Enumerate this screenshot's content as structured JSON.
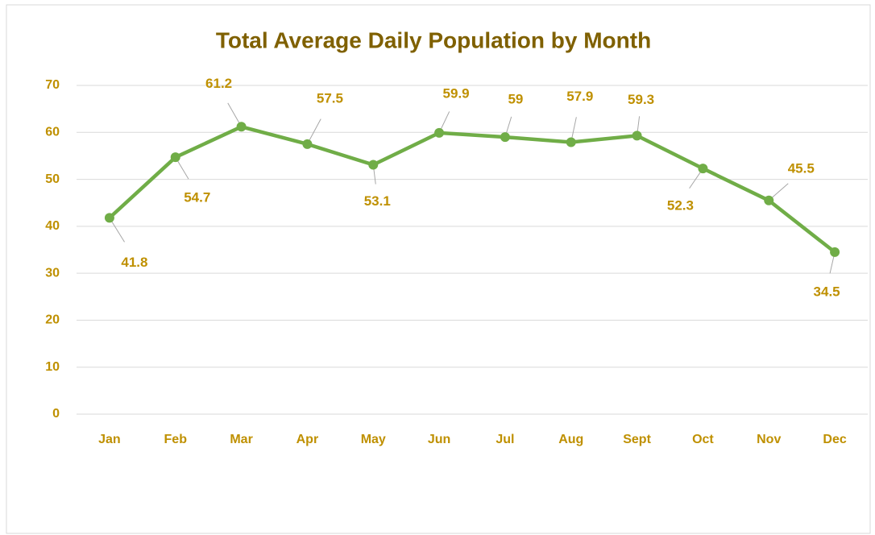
{
  "chart_data": {
    "type": "line",
    "title": "Total Average Daily Population by Month",
    "categories": [
      "Jan",
      "Feb",
      "Mar",
      "Apr",
      "May",
      "Jun",
      "Jul",
      "Aug",
      "Sept",
      "Oct",
      "Nov",
      "Dec"
    ],
    "series": [
      {
        "color": "#70ad47",
        "values": [
          41.8,
          54.7,
          61.2,
          57.5,
          53.1,
          59.9,
          59,
          57.9,
          59.3,
          52.3,
          45.5,
          34.5
        ]
      }
    ],
    "ylim": [
      0,
      70
    ],
    "yticks": [
      0,
      10,
      20,
      30,
      40,
      50,
      60,
      70
    ],
    "grid": true
  }
}
